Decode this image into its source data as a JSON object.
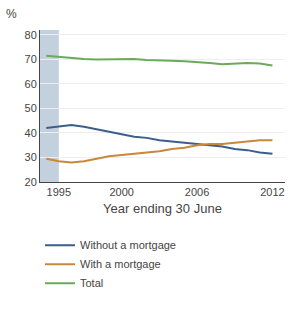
{
  "chart_data": {
    "type": "line",
    "title": "%",
    "x_label": "Year ending 30 June",
    "x": [
      1994,
      1995,
      1996,
      1997,
      1998,
      1999,
      2000,
      2001,
      2002,
      2003,
      2004,
      2005,
      2006,
      2007,
      2008,
      2009,
      2010,
      2011,
      2012
    ],
    "series": [
      {
        "name": "Without a mortgage",
        "color": "#3a5f8a",
        "values": [
          42.0,
          42.5,
          43.2,
          42.5,
          41.5,
          40.5,
          39.5,
          38.5,
          38.0,
          37.0,
          36.5,
          36.0,
          35.5,
          35.0,
          34.5,
          33.5,
          33.0,
          32.0,
          31.5
        ]
      },
      {
        "name": "With a mortgage",
        "color": "#c8883a",
        "values": [
          29.5,
          28.5,
          28.0,
          28.5,
          29.5,
          30.5,
          31.0,
          31.5,
          32.0,
          32.5,
          33.5,
          34.0,
          35.0,
          35.5,
          35.5,
          36.0,
          36.5,
          37.0,
          37.0
        ]
      },
      {
        "name": "Total",
        "color": "#6aaa5a",
        "values": [
          71.5,
          71.0,
          70.5,
          70.2,
          70.0,
          70.0,
          70.3,
          70.2,
          69.8,
          69.5,
          69.5,
          69.3,
          69.0,
          68.5,
          68.0,
          68.2,
          68.5,
          68.3,
          67.5
        ]
      }
    ],
    "shaded_region": {
      "x": [
        1993.5,
        1995.0
      ],
      "color": "#b8c8d8"
    },
    "xlim": [
      1993.5,
      2013.0
    ],
    "xticks": [
      1995,
      2000,
      2006,
      2012
    ],
    "ylim": [
      20,
      82
    ],
    "yticks": [
      20,
      30,
      40,
      50,
      60,
      70,
      80
    ],
    "grid": "y",
    "legend": "bottom"
  }
}
